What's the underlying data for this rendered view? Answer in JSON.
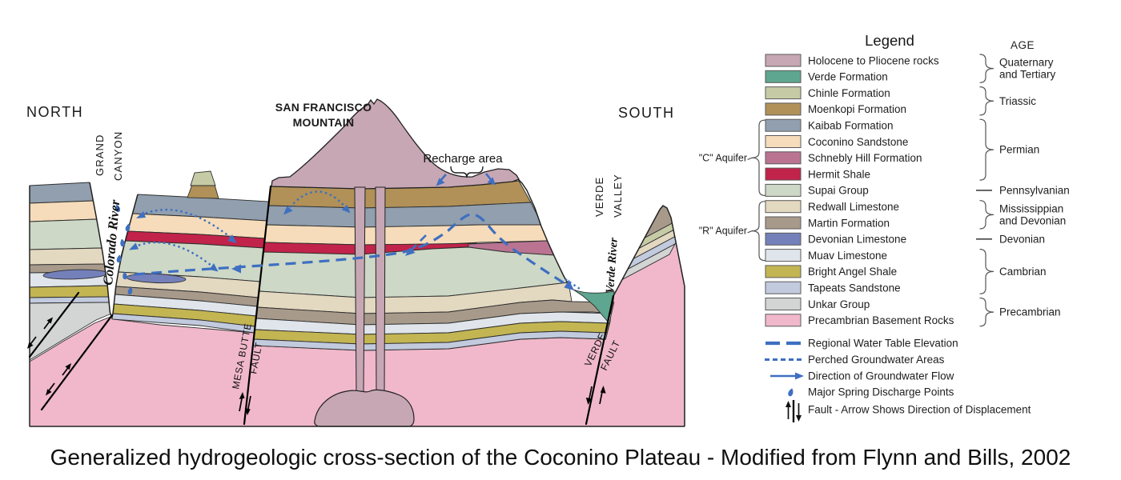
{
  "caption": "Generalized hydrogeologic cross-section of the Coconino Plateau - Modified from Flynn and Bills, 2002",
  "section": {
    "north": "NORTH",
    "south": "SOUTH",
    "san_francisco": [
      "SAN FRANCISCO",
      "MOUNTAIN"
    ],
    "recharge": "Recharge area",
    "grand_canyon": [
      "GRAND",
      "CANYON"
    ],
    "colorado_river": "Colorado River",
    "verde_valley": [
      "VERDE",
      "VALLEY"
    ],
    "verde_river": "Verde River",
    "mesa_butte_fault": [
      "MESA BUTTE",
      "FAULT"
    ],
    "verde_fault": [
      "VERDE",
      "FAULT"
    ]
  },
  "legend": {
    "title": "Legend",
    "age_title": "AGE",
    "water_color": "#3e6fc1",
    "formations": [
      {
        "key": "holocene",
        "label": "Holocene to Pliocene rocks",
        "color": "#c7a7b4"
      },
      {
        "key": "verde",
        "label": "Verde Formation",
        "color": "#5ea68f"
      },
      {
        "key": "chinle",
        "label": "Chinle Formation",
        "color": "#c6cba6"
      },
      {
        "key": "moenkopi",
        "label": "Moenkopi Formation",
        "color": "#b19157"
      },
      {
        "key": "kaibab",
        "label": "Kaibab Formation",
        "color": "#919fae"
      },
      {
        "key": "coconino",
        "label": "Coconino Sandstone",
        "color": "#f6dcba"
      },
      {
        "key": "schnebly",
        "label": "Schnebly Hill Formation",
        "color": "#ba7492"
      },
      {
        "key": "hermit",
        "label": "Hermit Shale",
        "color": "#c2234a"
      },
      {
        "key": "supai",
        "label": "Supai Group",
        "color": "#cdd8c6"
      },
      {
        "key": "redwall",
        "label": "Redwall Limestone",
        "color": "#e3d8c0"
      },
      {
        "key": "martin",
        "label": "Martin Formation",
        "color": "#a89a8b"
      },
      {
        "key": "devonian_ls",
        "label": "Devonian Limestone",
        "color": "#7380ba"
      },
      {
        "key": "muav",
        "label": "Muav Limestone",
        "color": "#dfe5ea"
      },
      {
        "key": "bright_angel",
        "label": "Bright Angel Shale",
        "color": "#c3b552"
      },
      {
        "key": "tapeats",
        "label": "Tapeats Sandstone",
        "color": "#c2cade"
      },
      {
        "key": "unkar",
        "label": "Unkar Group",
        "color": "#d2d5d3"
      },
      {
        "key": "basement",
        "label": "Precambrian Basement Rocks",
        "color": "#f0b8ca"
      }
    ],
    "aquifers": [
      {
        "label": "\"C\" Aquifer",
        "row_start": 4,
        "row_end": 8
      },
      {
        "label": "\"R\" Aquifer",
        "row_start": 9,
        "row_end": 12
      }
    ],
    "ages": [
      {
        "type": "brace",
        "lines": [
          "Quaternary",
          "and Tertiary"
        ],
        "row_start": 0,
        "row_end": 1
      },
      {
        "type": "brace",
        "lines": [
          "Triassic"
        ],
        "row_start": 2,
        "row_end": 3
      },
      {
        "type": "brace",
        "lines": [
          "Permian"
        ],
        "row_start": 4,
        "row_end": 7
      },
      {
        "type": "dash",
        "lines": [
          "Pennsylvanian"
        ],
        "row": 8
      },
      {
        "type": "brace",
        "lines": [
          "Mississippian",
          "and Devonian"
        ],
        "row_start": 9,
        "row_end": 10
      },
      {
        "type": "dash",
        "lines": [
          "Devonian"
        ],
        "row": 11
      },
      {
        "type": "brace",
        "lines": [
          "Cambrian"
        ],
        "row_start": 12,
        "row_end": 14
      },
      {
        "type": "brace",
        "lines": [
          "Precambrian"
        ],
        "row_start": 15,
        "row_end": 16
      }
    ],
    "symbols": [
      {
        "key": "water_table",
        "label": "Regional Water Table Elevation"
      },
      {
        "key": "perched",
        "label": "Perched Groundwater Areas"
      },
      {
        "key": "flow",
        "label": "Direction of Groundwater Flow"
      },
      {
        "key": "springs",
        "label": "Major Spring Discharge Points"
      },
      {
        "key": "fault",
        "label": "Fault - Arrow Shows Direction of Displacement"
      }
    ]
  }
}
